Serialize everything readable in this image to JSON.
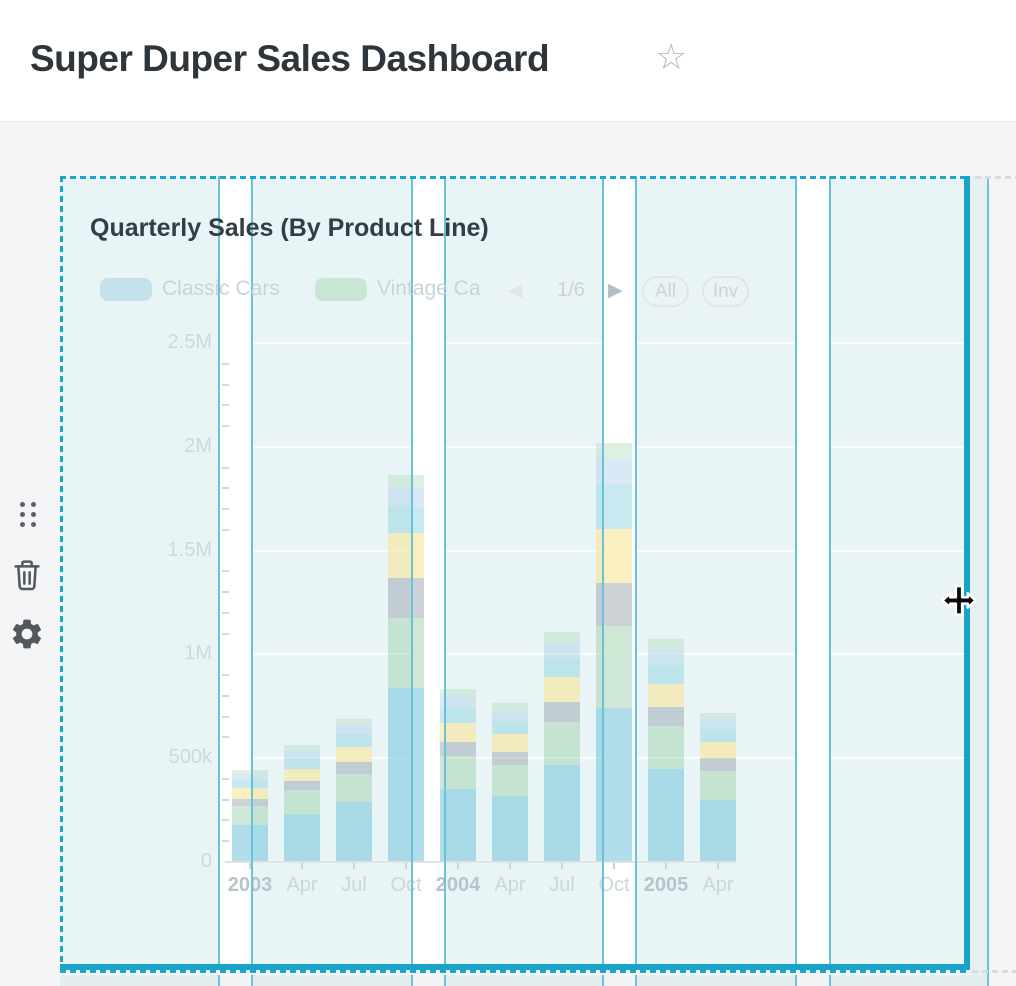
{
  "header": {
    "title": "Super Duper Sales Dashboard",
    "favorite_icon": "star-outline"
  },
  "widget": {
    "title": "Quarterly Sales (By Product Line)",
    "controls": [
      {
        "icon": "drag-handle"
      },
      {
        "icon": "trash"
      },
      {
        "icon": "gear"
      }
    ],
    "legend": {
      "items": [
        {
          "label": "Classic Cars",
          "swatch_color": "#c3e2ec"
        },
        {
          "label": "Vintage Ca",
          "truncated": true,
          "swatch_color": "#c7e6d3"
        }
      ],
      "pagination": {
        "label": "1/6",
        "prev_enabled": false,
        "next_enabled": true
      },
      "buttons": [
        {
          "label": "All"
        },
        {
          "label": "Inv"
        }
      ]
    },
    "selection": {
      "border_color": "#1ca6c8",
      "grid_line_color": "#68c2d8",
      "fill_color": "#e9f4f6"
    },
    "cursor": "move-horizontal"
  },
  "chart_data": {
    "type": "bar",
    "stacked": true,
    "title": "Quarterly Sales (By Product Line)",
    "x_tick_labels": [
      "2003",
      "Apr",
      "Jul",
      "Oct",
      "2004",
      "Apr",
      "Jul",
      "Oct",
      "2005",
      "Apr"
    ],
    "x_bold_labels": [
      "2003",
      "2004",
      "2005"
    ],
    "y_tick_labels": [
      "0",
      "500k",
      "1M",
      "1.5M",
      "2M",
      "2.5M"
    ],
    "ylim": [
      0,
      2500000
    ],
    "values_unit": "thousands (estimated from pixels)",
    "grid": true,
    "legend_position": "top",
    "series": [
      {
        "name": "Classic Cars",
        "color": "rgba(125,198,220,0.60)",
        "values": [
          180,
          230,
          290,
          840,
          350,
          320,
          465,
          740,
          450,
          300
        ]
      },
      {
        "name": "Vintage Ca",
        "color": "rgba(165,213,178,0.55)",
        "values": [
          90,
          115,
          135,
          335,
          160,
          145,
          210,
          395,
          205,
          140
        ]
      },
      {
        "name": "",
        "color": "rgba(156,166,175,0.50)",
        "values": [
          35,
          45,
          55,
          195,
          70,
          65,
          95,
          210,
          90,
          60
        ]
      },
      {
        "name": "",
        "color": "rgba(245,229,155,0.62)",
        "values": [
          50,
          60,
          75,
          215,
          90,
          85,
          120,
          260,
          115,
          80
        ]
      },
      {
        "name": "",
        "color": "rgba(145,212,224,0.50)",
        "values": [
          40,
          50,
          60,
          125,
          70,
          65,
          90,
          215,
          90,
          60
        ]
      },
      {
        "name": "",
        "color": "rgba(170,206,233,0.45)",
        "values": [
          30,
          40,
          45,
          90,
          55,
          50,
          75,
          125,
          75,
          48
        ]
      },
      {
        "name": "",
        "color": "rgba(180,222,190,0.45)",
        "values": [
          20,
          24,
          30,
          64,
          40,
          35,
          55,
          75,
          50,
          32
        ]
      }
    ],
    "stack_totals_thousands": [
      445,
      564,
      690,
      1864,
      835,
      765,
      1110,
      2020,
      1075,
      720
    ]
  }
}
